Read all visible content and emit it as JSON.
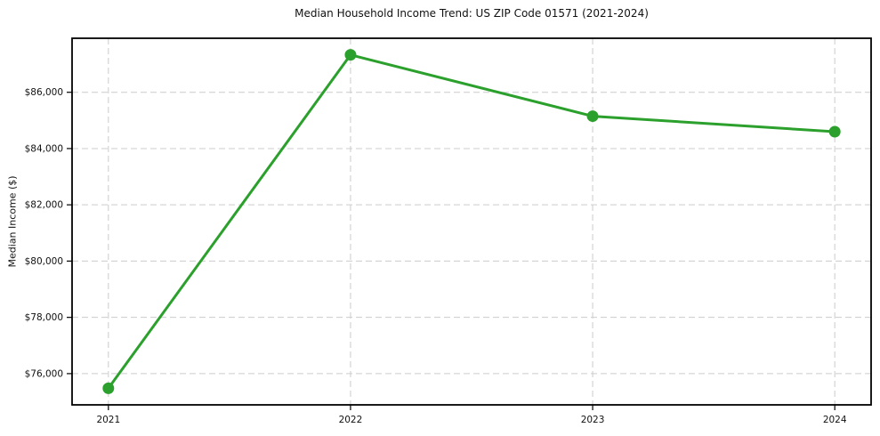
{
  "chart_data": {
    "type": "line",
    "title": "Median Household Income Trend: US ZIP Code 01571 (2021-2024)",
    "xlabel": "",
    "ylabel": "Median Income ($)",
    "x": [
      2021,
      2022,
      2023,
      2024
    ],
    "x_tick_labels": [
      "2021",
      "2022",
      "2023",
      "2024"
    ],
    "series": [
      {
        "name": "Median Household Income",
        "values": [
          75480,
          87330,
          85150,
          84600
        ],
        "color": "#2ca02c",
        "marker": "circle"
      }
    ],
    "yticks": [
      76000,
      78000,
      80000,
      82000,
      84000,
      86000
    ],
    "y_tick_labels": [
      "$76,000",
      "$78,000",
      "$80,000",
      "$82,000",
      "$84,000",
      "$86,000"
    ],
    "xlim": [
      2020.85,
      2024.15
    ],
    "ylim": [
      74890,
      87920
    ],
    "grid": true,
    "grid_line_style": "dashed",
    "legend": "none",
    "colors": {
      "line": "#2ca02c",
      "grid": "#cccccc",
      "axis": "#000000",
      "text": "#111111",
      "background": "#ffffff"
    }
  }
}
